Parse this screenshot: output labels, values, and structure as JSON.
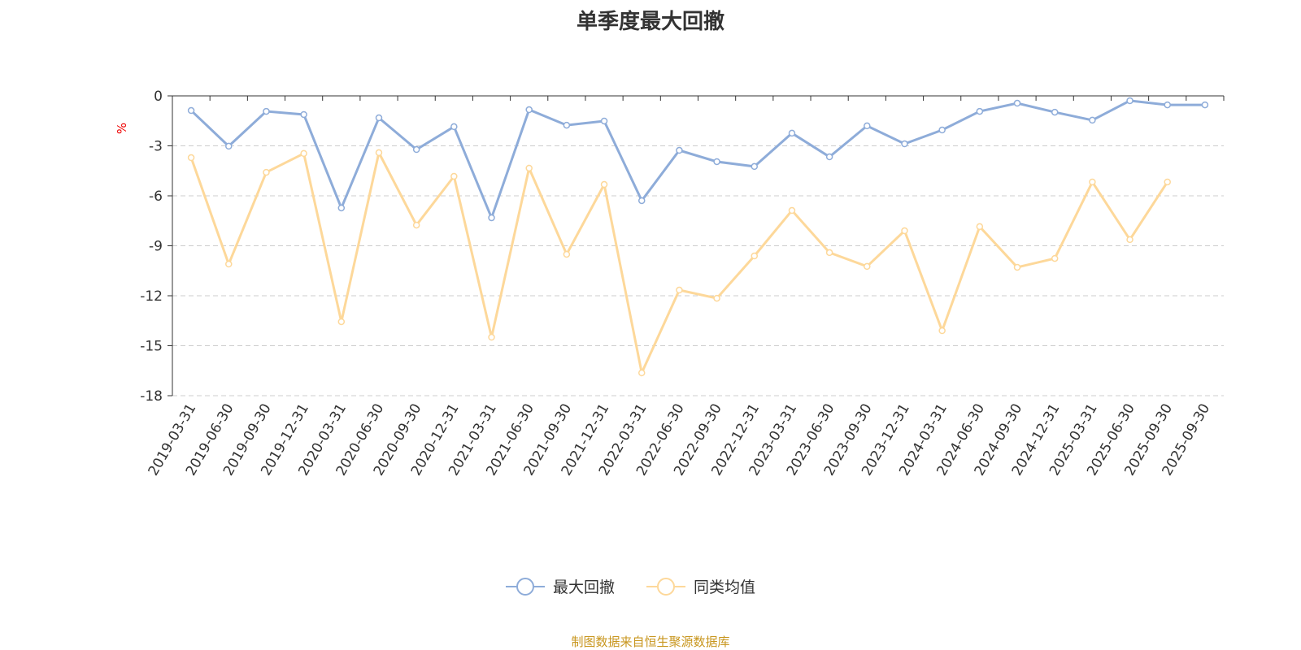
{
  "chart_data": {
    "type": "line",
    "title": "单季度最大回撤",
    "ylabel": "%",
    "xlabel": "",
    "ylim": [
      -18,
      0
    ],
    "yticks": [
      0,
      -3,
      -6,
      -9,
      -12,
      -15,
      -18
    ],
    "grid": true,
    "legend_position": "bottom",
    "categories": [
      "2019-03-31",
      "2019-06-30",
      "2019-09-30",
      "2019-12-31",
      "2020-03-31",
      "2020-06-30",
      "2020-09-30",
      "2020-12-31",
      "2021-03-31",
      "2021-06-30",
      "2021-09-30",
      "2021-12-31",
      "2022-03-31",
      "2022-06-30",
      "2022-09-30",
      "2022-12-31",
      "2023-03-31",
      "2023-06-30",
      "2023-09-30",
      "2023-12-31",
      "2024-03-31",
      "2024-06-30",
      "2024-09-30",
      "2024-12-31",
      "2025-03-31",
      "2025-06-30",
      "2025-09-30",
      "2025-09-30"
    ],
    "series": [
      {
        "name": "最大回撤",
        "color": "#8eacd9",
        "values": [
          -0.88,
          -3.02,
          -0.93,
          -1.12,
          -6.73,
          -1.32,
          -3.22,
          -1.85,
          -7.32,
          -0.83,
          -1.76,
          -1.51,
          -6.29,
          -3.27,
          -3.95,
          -4.24,
          -2.24,
          -3.66,
          -1.8,
          -2.88,
          -2.05,
          -0.93,
          -0.44,
          -0.98,
          -1.46,
          -0.29,
          -0.54,
          -0.54
        ]
      },
      {
        "name": "同类均值",
        "color": "#fdd89a",
        "values": [
          -3.71,
          -10.1,
          -4.59,
          -3.46,
          -13.56,
          -3.41,
          -7.76,
          -4.83,
          -14.49,
          -4.34,
          -9.51,
          -5.32,
          -16.63,
          -11.66,
          -12.15,
          -9.61,
          -6.88,
          -9.41,
          -10.24,
          -8.1,
          -14.1,
          -7.85,
          -10.29,
          -9.76,
          -5.17,
          -8.63,
          -5.17,
          null
        ]
      }
    ]
  },
  "footer": "制图数据来自恒生聚源数据库"
}
